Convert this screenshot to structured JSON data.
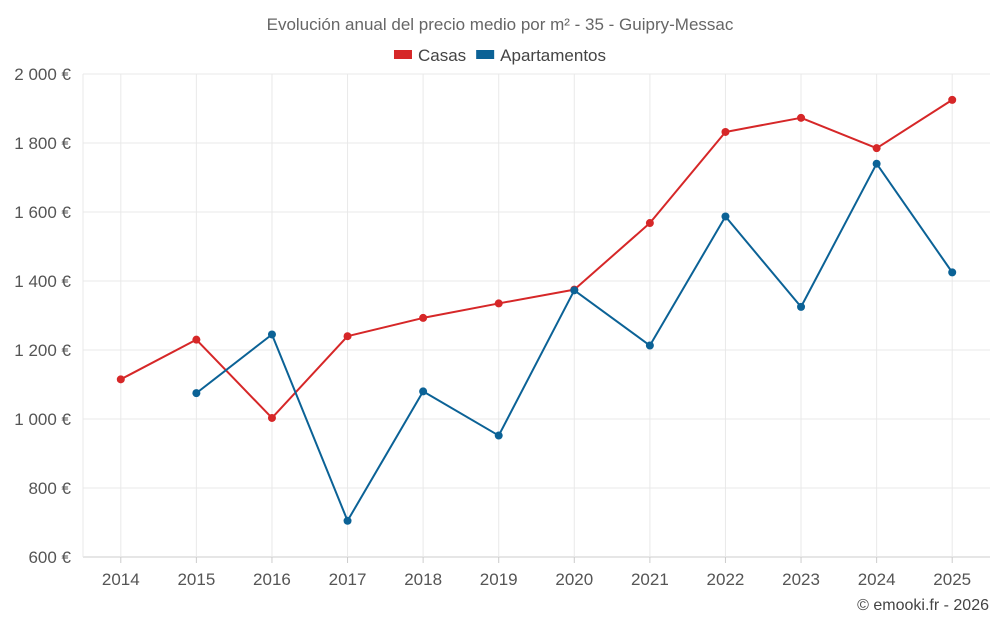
{
  "chart_data": {
    "type": "line",
    "title": "Evolución anual del precio medio por m² - 35 - Guipry-Messac",
    "categories": [
      "2014",
      "2015",
      "2016",
      "2017",
      "2018",
      "2019",
      "2020",
      "2021",
      "2022",
      "2023",
      "2024",
      "2025"
    ],
    "series": [
      {
        "name": "Casas",
        "color": "#d62728",
        "values": [
          1115,
          1230,
          1003,
          1240,
          1293,
          1335,
          1375,
          1568,
          1832,
          1873,
          1785,
          1925
        ]
      },
      {
        "name": "Apartamentos",
        "color": "#0b6296",
        "values": [
          null,
          1075,
          1245,
          705,
          1080,
          952,
          1373,
          1213,
          1587,
          1325,
          1740,
          1425
        ]
      }
    ],
    "y_ticks": [
      600,
      800,
      1000,
      1200,
      1400,
      1600,
      1800,
      2000
    ],
    "y_tick_labels": [
      "600 €",
      "800 €",
      "1 000 €",
      "1 200 €",
      "1 400 €",
      "1 600 €",
      "1 800 €",
      "2 000 €"
    ],
    "ylim": [
      600,
      2000
    ],
    "xlabel": "",
    "ylabel": "",
    "legend_position": "top-center",
    "grid": true
  },
  "credit": "© emooki.fr - 2026"
}
